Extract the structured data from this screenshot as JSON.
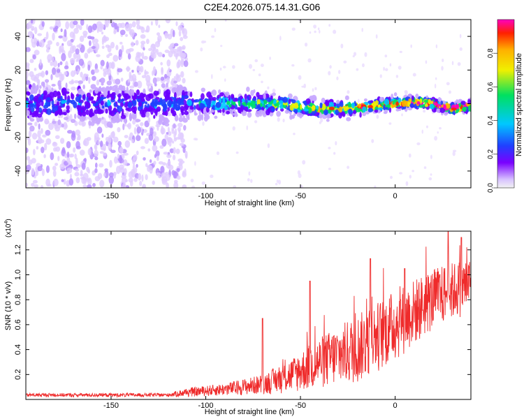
{
  "title": "C2E4.2026.075.14.31.G06",
  "colors": {
    "snr_line": "#ef2b2b",
    "axis": "#000000",
    "colormap": [
      "#f2f2f2",
      "#c8a8ff",
      "#6a00ff",
      "#2040ff",
      "#00c8ff",
      "#00e060",
      "#f0f000",
      "#ffb000",
      "#ff2000",
      "#ff00c0"
    ]
  },
  "chart_data": [
    {
      "type": "heatmap",
      "name": "spectrogram",
      "xlabel": "Height of straight line (km)",
      "ylabel": "Frequency (Hz)",
      "xlim": [
        -195,
        40
      ],
      "ylim": [
        -50,
        50
      ],
      "xticks": [
        -150,
        -100,
        -50,
        0
      ],
      "yticks": [
        -40,
        -20,
        0,
        20,
        40
      ],
      "ridge": [
        {
          "x": -195,
          "y": 0
        },
        {
          "x": -150,
          "y": 0
        },
        {
          "x": -110,
          "y": 0
        },
        {
          "x": -90,
          "y": 0
        },
        {
          "x": -70,
          "y": 0
        },
        {
          "x": -55,
          "y": -1
        },
        {
          "x": -40,
          "y": -3
        },
        {
          "x": -30,
          "y": -3
        },
        {
          "x": -20,
          "y": -2
        },
        {
          "x": -10,
          "y": -1
        },
        {
          "x": 0,
          "y": 0
        },
        {
          "x": 10,
          "y": 1
        },
        {
          "x": 20,
          "y": 0
        },
        {
          "x": 30,
          "y": -3
        },
        {
          "x": 40,
          "y": -1
        }
      ],
      "colorbar": {
        "label": "Normalized spectral amplitude",
        "ticks": [
          "0.0",
          "0.2",
          "0.4",
          "0.6",
          "0.8"
        ],
        "range": [
          0,
          1
        ]
      }
    },
    {
      "type": "line",
      "name": "snr",
      "xlabel": "Height of straight line (km)",
      "ylabel": "SNR (10 * v/v)",
      "multiplier": "(x10",
      "multiplier_exp": "4",
      "xlim": [
        -195,
        40
      ],
      "ylim": [
        0,
        1.35
      ],
      "xticks": [
        -150,
        -100,
        -50,
        0
      ],
      "yticks": [
        "0.2",
        "0.4",
        "0.6",
        "0.8",
        "1.0",
        "1.2"
      ],
      "trend": [
        {
          "x": -195,
          "lo": 0.02,
          "hi": 0.05
        },
        {
          "x": -120,
          "lo": 0.02,
          "hi": 0.05
        },
        {
          "x": -110,
          "lo": 0.02,
          "hi": 0.09
        },
        {
          "x": -90,
          "lo": 0.03,
          "hi": 0.13
        },
        {
          "x": -70,
          "lo": 0.04,
          "hi": 0.2
        },
        {
          "x": -55,
          "lo": 0.05,
          "hi": 0.33
        },
        {
          "x": -40,
          "lo": 0.08,
          "hi": 0.5
        },
        {
          "x": -20,
          "lo": 0.12,
          "hi": 0.68
        },
        {
          "x": 0,
          "lo": 0.3,
          "hi": 0.88
        },
        {
          "x": 20,
          "lo": 0.55,
          "hi": 1.05
        },
        {
          "x": 40,
          "lo": 0.7,
          "hi": 1.15
        }
      ],
      "peaks": [
        {
          "x": -70,
          "y": 0.65
        },
        {
          "x": -45,
          "y": 0.95
        },
        {
          "x": -13,
          "y": 1.13
        },
        {
          "x": 5,
          "y": 1.05
        },
        {
          "x": 28,
          "y": 1.35
        },
        {
          "x": 35,
          "y": 1.3
        }
      ]
    }
  ]
}
